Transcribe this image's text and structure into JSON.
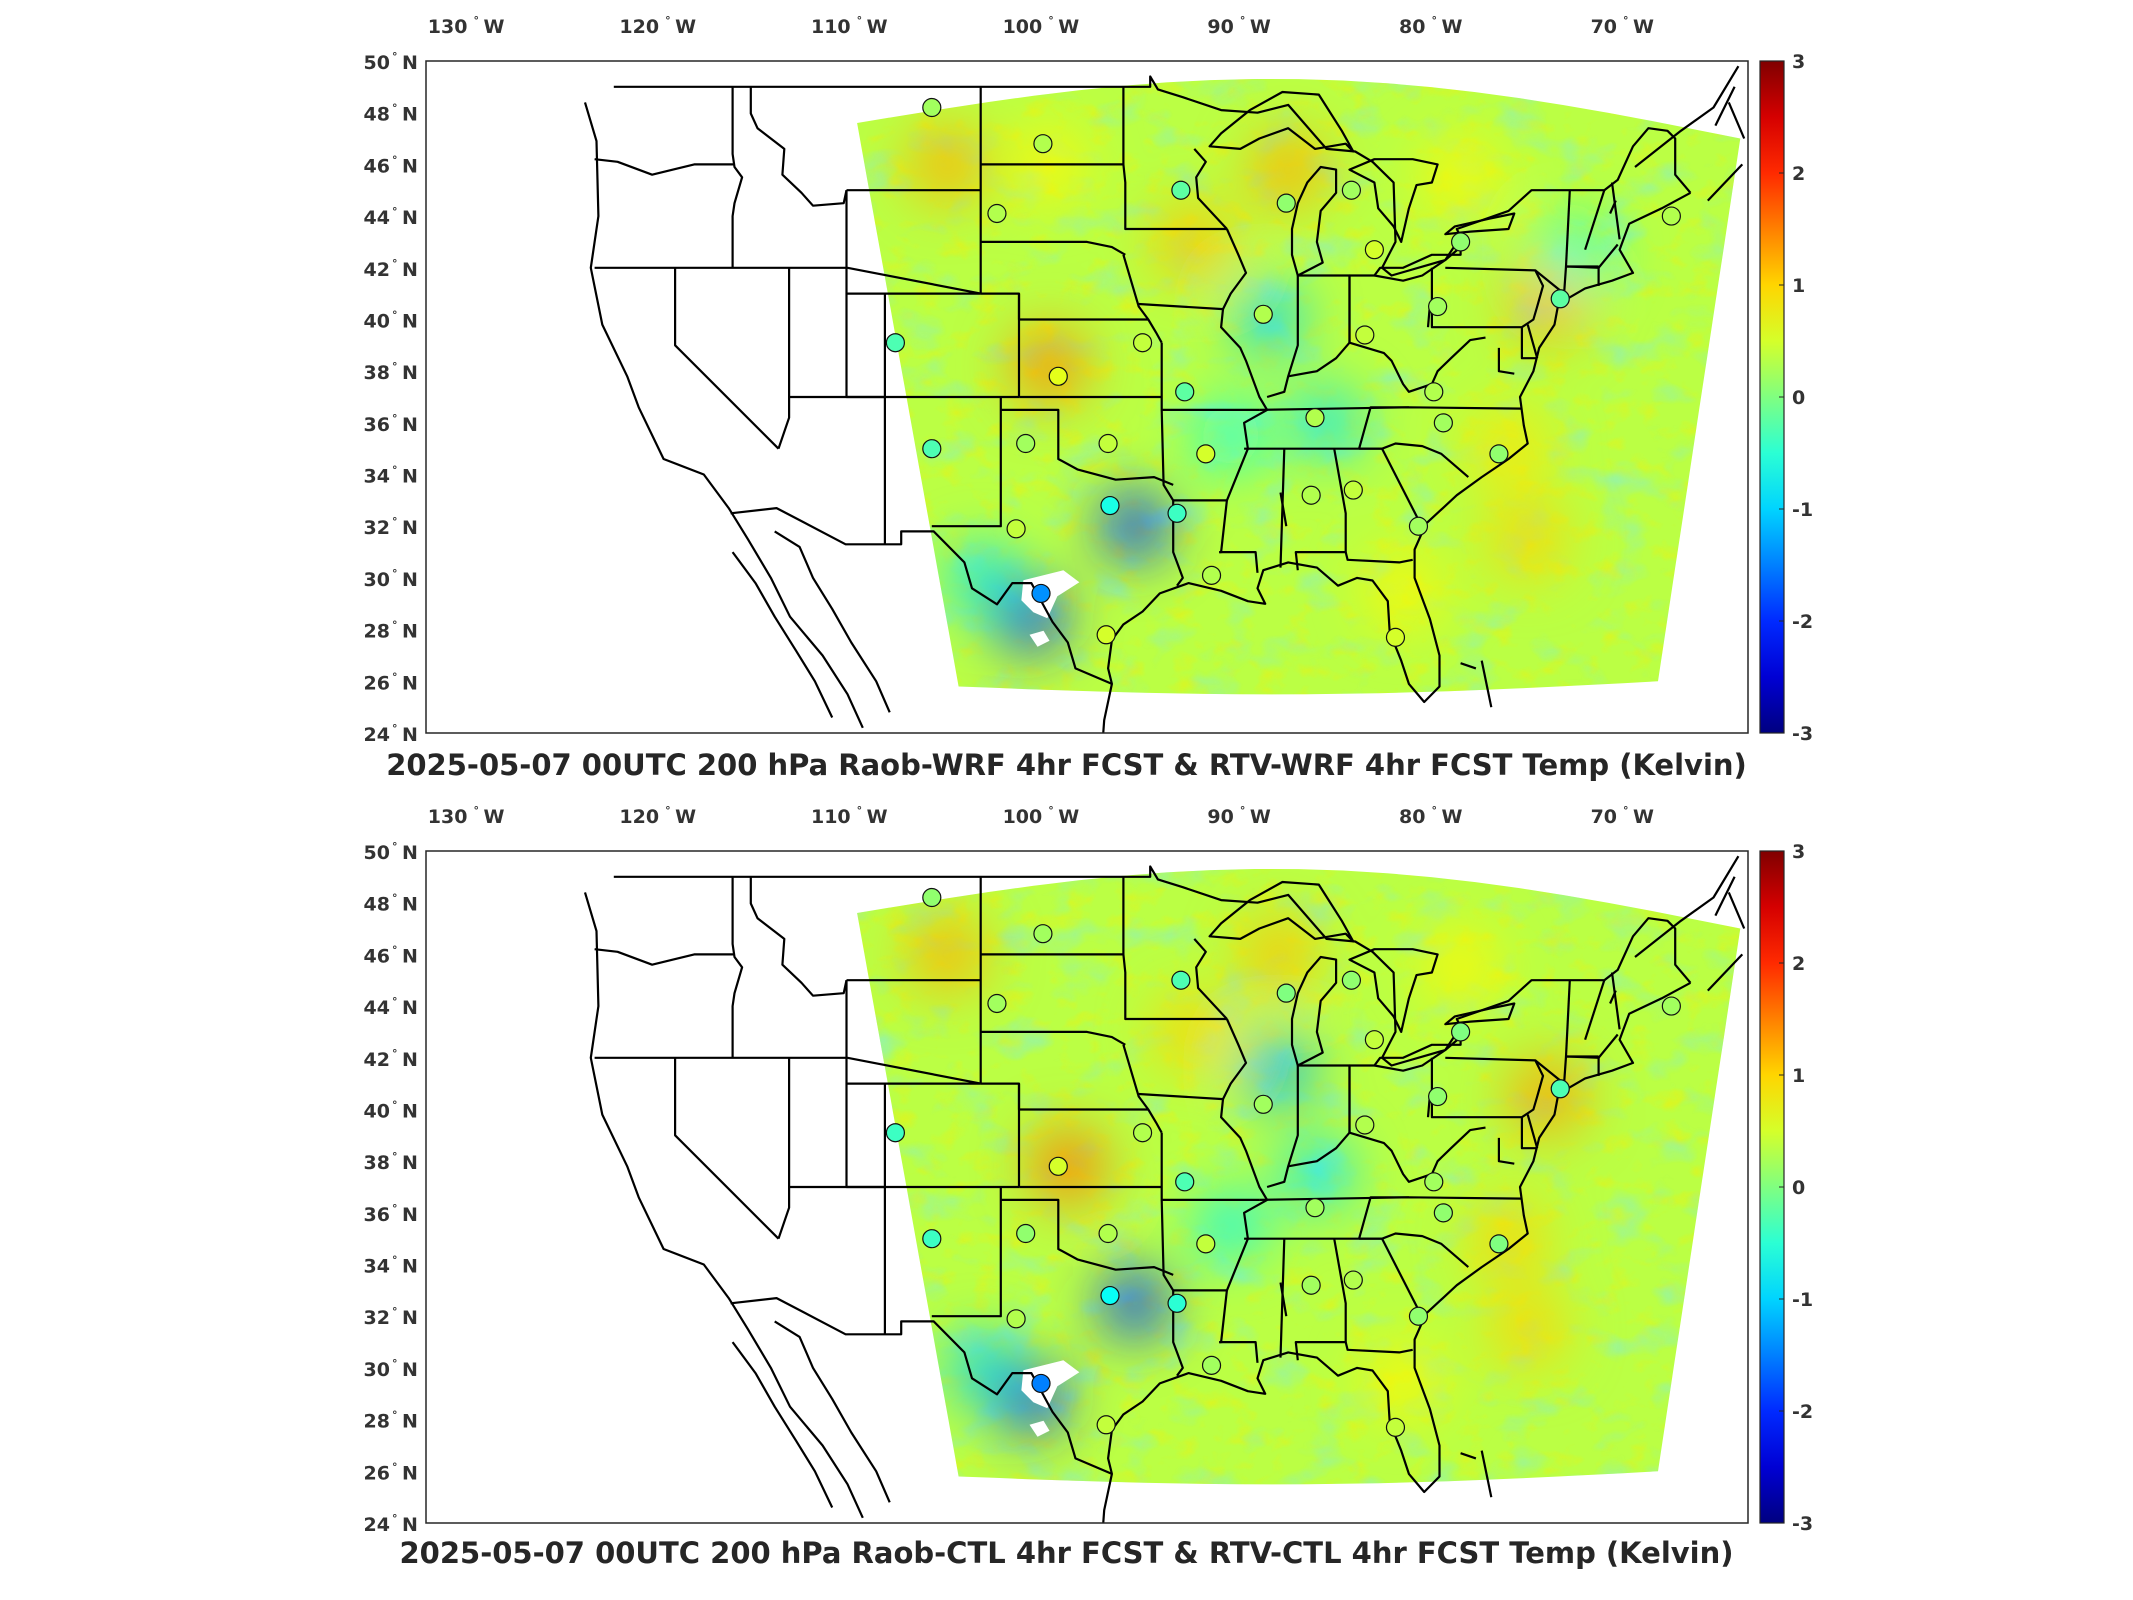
{
  "panels": [
    {
      "title": "2025-05-07 00UTC 200 hPa Raob-WRF 4hr FCST & RTV-WRF 4hr FCST Temp (Kelvin)",
      "warm_spots": [
        {
          "lon": -100.5,
          "lat": 38.2,
          "v": 1.4
        },
        {
          "lon": -105.8,
          "lat": 46.0,
          "v": 1.2
        },
        {
          "lon": -93.0,
          "lat": 43.0,
          "v": 1.1
        },
        {
          "lon": -88.0,
          "lat": 45.8,
          "v": 1.2
        },
        {
          "lon": -74.5,
          "lat": 40.6,
          "v": 1.2
        },
        {
          "lon": -76.5,
          "lat": 35.0,
          "v": 0.9
        },
        {
          "lon": -75.5,
          "lat": 31.5,
          "v": 1.0
        },
        {
          "lon": -82.0,
          "lat": 29.5,
          "v": 0.8
        },
        {
          "lon": -100.5,
          "lat": 46.0,
          "v": 0.8
        },
        {
          "lon": -79.0,
          "lat": 45.5,
          "v": 0.8
        }
      ],
      "cool_spots": [
        {
          "lon": -96.0,
          "lat": 32.0,
          "v": -1.9
        },
        {
          "lon": -101.5,
          "lat": 28.5,
          "v": -2.0
        },
        {
          "lon": -89.0,
          "lat": 40.0,
          "v": -1.0
        },
        {
          "lon": -86.0,
          "lat": 36.0,
          "v": -0.9
        },
        {
          "lon": -104.0,
          "lat": 30.0,
          "v": -0.9
        },
        {
          "lon": -73.0,
          "lat": 42.5,
          "v": -0.6
        },
        {
          "lon": -91.0,
          "lat": 35.5,
          "v": -0.7
        }
      ]
    },
    {
      "title": "2025-05-07 00UTC 200 hPa Raob-CTL 4hr FCST & RTV-CTL 4hr FCST Temp (Kelvin)",
      "warm_spots": [
        {
          "lon": -99.5,
          "lat": 37.8,
          "v": 1.5
        },
        {
          "lon": -105.8,
          "lat": 46.0,
          "v": 1.2
        },
        {
          "lon": -93.0,
          "lat": 43.0,
          "v": 1.0
        },
        {
          "lon": -88.5,
          "lat": 46.0,
          "v": 1.1
        },
        {
          "lon": -74.5,
          "lat": 40.5,
          "v": 1.3
        },
        {
          "lon": -76.5,
          "lat": 35.0,
          "v": 1.0
        },
        {
          "lon": -75.5,
          "lat": 31.5,
          "v": 1.0
        },
        {
          "lon": -82.0,
          "lat": 29.5,
          "v": 0.8
        },
        {
          "lon": -79.0,
          "lat": 45.5,
          "v": 0.8
        }
      ],
      "cool_spots": [
        {
          "lon": -96.0,
          "lat": 32.5,
          "v": -1.9
        },
        {
          "lon": -101.5,
          "lat": 28.8,
          "v": -2.0
        },
        {
          "lon": -88.5,
          "lat": 41.5,
          "v": -1.2
        },
        {
          "lon": -86.5,
          "lat": 37.5,
          "v": -0.9
        },
        {
          "lon": -104.0,
          "lat": 30.0,
          "v": -1.0
        },
        {
          "lon": -91.0,
          "lat": 35.5,
          "v": -0.8
        }
      ]
    }
  ],
  "lon_ticks": [
    "130",
    "120",
    "110",
    "100",
    "90",
    "80",
    "70"
  ],
  "lat_ticks": [
    "24",
    "26",
    "28",
    "30",
    "32",
    "34",
    "36",
    "38",
    "40",
    "42",
    "44",
    "46",
    "48",
    "50"
  ],
  "lon_suffix": "W",
  "lat_suffix": "N",
  "colorbar": {
    "ticks": [
      "3",
      "2",
      "1",
      "0",
      "-1",
      "-2",
      "-3"
    ],
    "range": [
      -3,
      3
    ],
    "colormap": "jet"
  },
  "stations": [
    {
      "lon": -106.6,
      "lat": 48.2,
      "v": 0.2
    },
    {
      "lon": -100.8,
      "lat": 46.8,
      "v": 0.3
    },
    {
      "lon": -93.6,
      "lat": 45.0,
      "v": -0.2
    },
    {
      "lon": -103.2,
      "lat": 44.1,
      "v": 0.3
    },
    {
      "lon": -88.1,
      "lat": 44.5,
      "v": 0.1
    },
    {
      "lon": -84.7,
      "lat": 45.0,
      "v": 0.2
    },
    {
      "lon": -83.5,
      "lat": 42.7,
      "v": 0.5
    },
    {
      "lon": -79.0,
      "lat": 43.0,
      "v": 0.1
    },
    {
      "lon": -68.0,
      "lat": 44.0,
      "v": 0.3
    },
    {
      "lon": -108.5,
      "lat": 39.1,
      "v": -0.3
    },
    {
      "lon": -95.6,
      "lat": 39.1,
      "v": 0.4
    },
    {
      "lon": -100.0,
      "lat": 37.8,
      "v": 0.6
    },
    {
      "lon": -89.3,
      "lat": 40.2,
      "v": 0.3
    },
    {
      "lon": -84.0,
      "lat": 39.4,
      "v": 0.4
    },
    {
      "lon": -80.2,
      "lat": 40.5,
      "v": 0.2
    },
    {
      "lon": -93.4,
      "lat": 37.2,
      "v": -0.2
    },
    {
      "lon": -86.6,
      "lat": 36.2,
      "v": 0.3
    },
    {
      "lon": -80.4,
      "lat": 37.2,
      "v": 0.3
    },
    {
      "lon": -106.6,
      "lat": 35.0,
      "v": -0.3
    },
    {
      "lon": -101.7,
      "lat": 35.2,
      "v": 0.2
    },
    {
      "lon": -97.4,
      "lat": 35.2,
      "v": 0.4
    },
    {
      "lon": -92.3,
      "lat": 34.8,
      "v": 0.5
    },
    {
      "lon": -79.9,
      "lat": 36.0,
      "v": 0.2
    },
    {
      "lon": -77.0,
      "lat": 34.8,
      "v": 0.1
    },
    {
      "lon": -97.3,
      "lat": 32.8,
      "v": -0.6
    },
    {
      "lon": -93.8,
      "lat": 32.5,
      "v": -0.4
    },
    {
      "lon": -86.8,
      "lat": 33.2,
      "v": 0.3
    },
    {
      "lon": -84.6,
      "lat": 33.4,
      "v": 0.4
    },
    {
      "lon": -81.2,
      "lat": 32.0,
      "v": 0.2
    },
    {
      "lon": -102.2,
      "lat": 31.9,
      "v": 0.4
    },
    {
      "lon": -100.9,
      "lat": 29.4,
      "v": -1.4
    },
    {
      "lon": -92.0,
      "lat": 30.1,
      "v": 0.3
    },
    {
      "lon": -97.5,
      "lat": 27.8,
      "v": 0.5
    },
    {
      "lon": -82.4,
      "lat": 27.7,
      "v": 0.5
    },
    {
      "lon": -73.8,
      "lat": 40.8,
      "v": -0.2
    }
  ]
}
